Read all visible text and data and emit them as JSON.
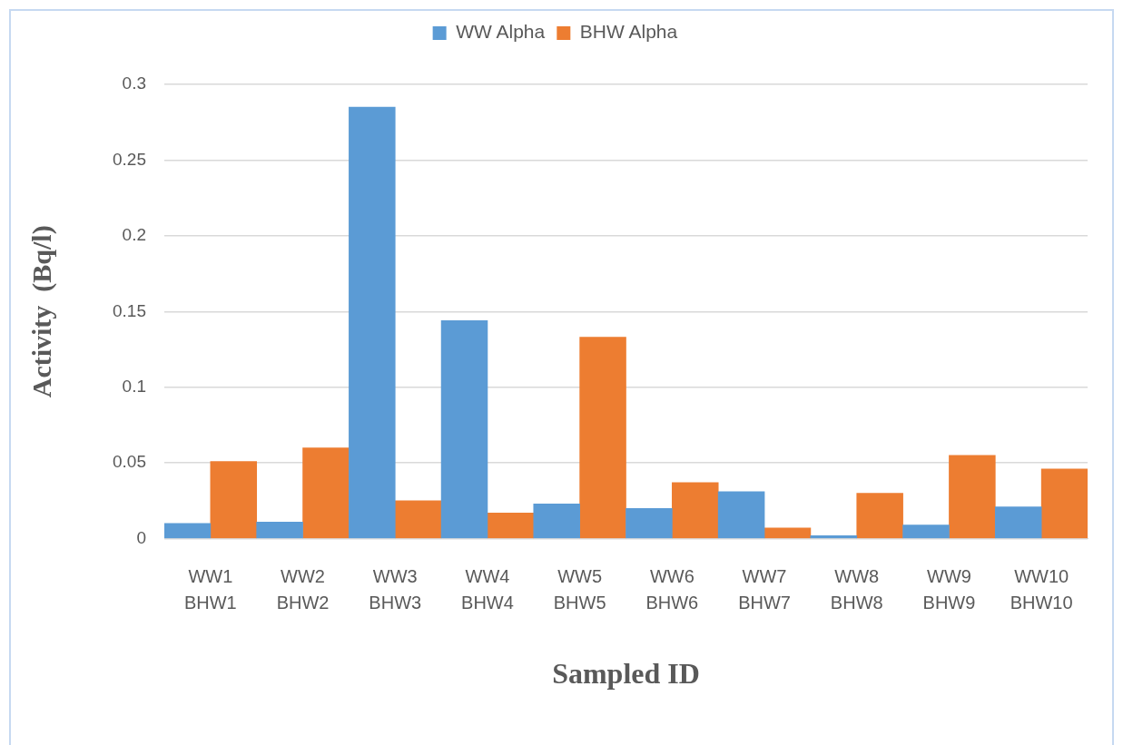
{
  "chart_data": {
    "type": "bar",
    "xlabel": "Sampled ID",
    "ylabel": "Activity  (Bq/l)",
    "categories": [
      "WW1\nBHW1",
      "WW2\nBHW2",
      "WW3\nBHW3",
      "WW4\nBHW4",
      "WW5\nBHW5",
      "WW6\nBHW6",
      "WW7\nBHW7",
      "WW8\nBHW8",
      "WW9\nBHW9",
      "WW10\nBHW10"
    ],
    "series": [
      {
        "name": "WW Alpha",
        "color": "#5b9bd5",
        "values": [
          0.01,
          0.011,
          0.285,
          0.144,
          0.023,
          0.02,
          0.031,
          0.002,
          0.009,
          0.021
        ]
      },
      {
        "name": "BHW Alpha",
        "color": "#ed7d31",
        "values": [
          0.051,
          0.06,
          0.025,
          0.017,
          0.133,
          0.037,
          0.007,
          0.03,
          0.055,
          0.046
        ]
      }
    ],
    "ylim": [
      0,
      0.3
    ],
    "yticks": [
      0,
      0.05,
      0.1,
      0.15,
      0.2,
      0.25,
      0.3
    ],
    "grid": "y",
    "legend": "top"
  }
}
